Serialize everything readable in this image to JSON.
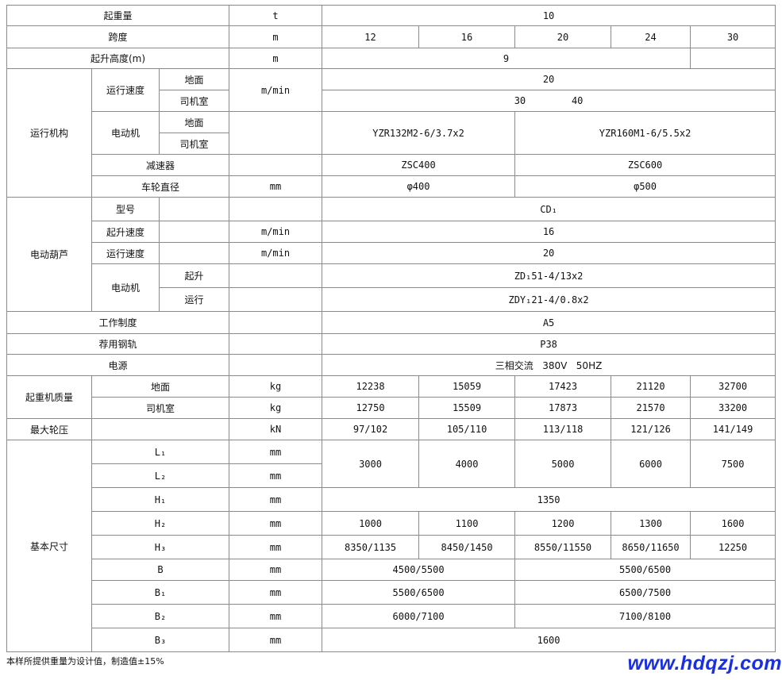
{
  "table": {
    "rows": [
      [
        "起重量",
        "t",
        "10"
      ],
      [
        "跨度",
        "m",
        "12",
        "16",
        "20",
        "24",
        "30"
      ],
      [
        "起升高度(m)",
        "m",
        "9",
        ""
      ],
      [
        "运行机构",
        "运行速度",
        "地面",
        "m/min",
        "20"
      ],
      [
        "司机室",
        "30        40"
      ],
      [
        "电动机",
        "地面",
        "",
        "YZR132M2-6/3.7x2",
        "YZR160M1-6/5.5x2"
      ],
      [
        "司机室"
      ],
      [
        "减速器",
        "",
        "ZSC400",
        "ZSC600"
      ],
      [
        "车轮直径",
        "mm",
        "φ400",
        "φ500"
      ],
      [
        "电动葫芦",
        "型号",
        "",
        "",
        "CD₁"
      ],
      [
        "起升速度",
        "",
        "m/min",
        "16"
      ],
      [
        "运行速度",
        "",
        "m/min",
        "20"
      ],
      [
        "电动机",
        "起升",
        "",
        "ZD₁51-4/13x2"
      ],
      [
        "运行",
        "",
        "ZDY₁21-4/0.8x2"
      ],
      [
        "工作制度",
        "",
        "A5"
      ],
      [
        "荐用钢轨",
        "",
        "P38"
      ],
      [
        "电源",
        "",
        "三相交流   380V   50HZ"
      ],
      [
        "起重机质量",
        "地面",
        "kg",
        "12238",
        "15059",
        "17423",
        "21120",
        "32700"
      ],
      [
        "司机室",
        "kg",
        "12750",
        "15509",
        "17873",
        "21570",
        "33200"
      ],
      [
        "最大轮压",
        "",
        "kN",
        "97/102",
        "105/110",
        "113/118",
        "121/126",
        "141/149"
      ],
      [
        "基本尺寸",
        "L₁",
        "mm",
        "3000",
        "4000",
        "5000",
        "6000",
        "7500"
      ],
      [
        "L₂",
        "mm"
      ],
      [
        "H₁",
        "mm",
        "1350"
      ],
      [
        "H₂",
        "mm",
        "1000",
        "1100",
        "1200",
        "1300",
        "1600"
      ],
      [
        "H₃",
        "mm",
        "8350/1135",
        "8450/1450",
        "8550/11550",
        "8650/11650",
        "12250"
      ],
      [
        "B",
        "mm",
        "4500/5500",
        "5500/6500"
      ],
      [
        "B₁",
        "mm",
        "5500/6500",
        "6500/7500"
      ],
      [
        "B₂",
        "mm",
        "6000/7100",
        "7100/8100"
      ],
      [
        "B₃",
        "mm",
        "1600"
      ]
    ]
  },
  "footer": {
    "note": "本样所提供重量为设计值，制造值±15%",
    "watermark": "www.hdqzj.com"
  },
  "colors": {
    "border": "#8a8a8a",
    "watermark": "#1a2fe0"
  }
}
